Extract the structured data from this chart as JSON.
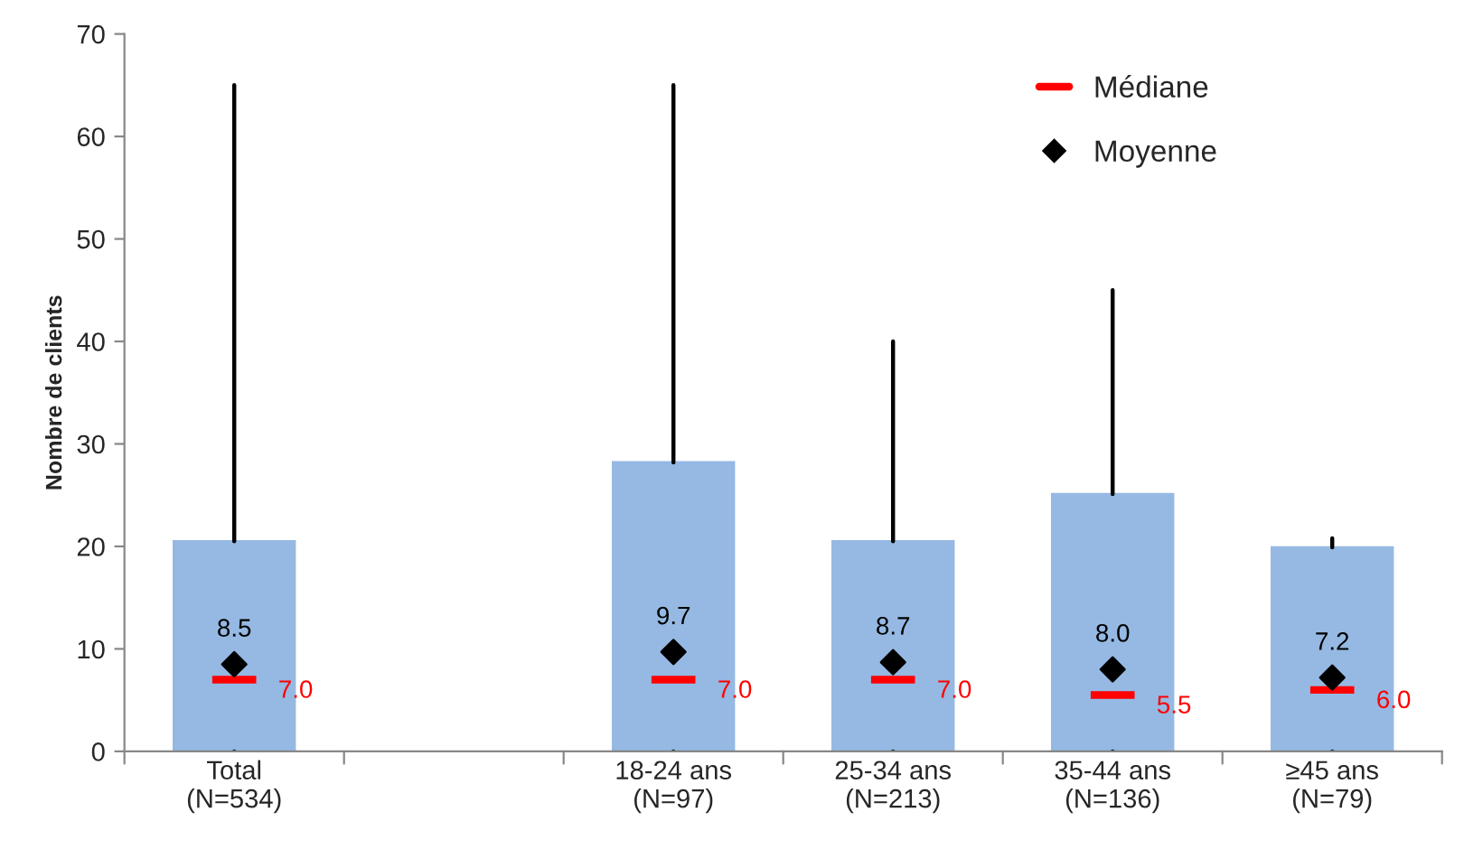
{
  "chart_data": {
    "type": "box",
    "ylabel": "Nombre de clients",
    "categories": [
      "Total\n(N=534)",
      null,
      "18-24 ans\n(N=97)",
      "25-34 ans\n(N=213)",
      "35-44 ans\n(N=136)",
      "≥45 ans\n(N=79)"
    ],
    "ylim": [
      0,
      70
    ],
    "yticks": [
      0,
      10,
      20,
      30,
      40,
      50,
      60,
      70
    ],
    "grid": false,
    "legend": "top right",
    "color": "#95b9e3",
    "boxes": [
      {
        "low": 0,
        "q1": 0,
        "median": 7.0,
        "q3": 20.5,
        "high": 65
      },
      null,
      {
        "low": 0,
        "q1": 0,
        "median": 7.0,
        "q3": 28.2,
        "high": 65
      },
      {
        "low": 0,
        "q1": 0,
        "median": 7.0,
        "q3": 20.5,
        "high": 40
      },
      {
        "low": 0,
        "q1": 0,
        "median": 5.5,
        "q3": 25.1,
        "high": 45
      },
      {
        "low": 0,
        "q1": 0,
        "median": 6.0,
        "q3": 19.9,
        "high": 20.8
      }
    ],
    "series": [
      {
        "name": "Moyenne",
        "type": "scatter",
        "color": "#000000",
        "marker": "diamond",
        "values": [
          8.5,
          null,
          9.7,
          8.7,
          8.0,
          7.2
        ],
        "value_labels": [
          "8.5",
          null,
          "9.7",
          "8.7",
          "8.0",
          "7.2"
        ]
      }
    ],
    "annotations": [
      "Médiane",
      {
        "text": "7.0",
        "x": "Total\n(N=534)",
        "y": 7.0
      },
      {
        "text": "7.0",
        "x": "18-24 ans\n(N=97)",
        "y": 7.0
      },
      {
        "text": "7.0",
        "x": "25-34 ans\n(N=213)",
        "y": 7.0
      },
      {
        "text": "5.5",
        "x": "35-44 ans\n(N=136)",
        "y": 5.5
      },
      {
        "text": "6.0",
        "x": "≥45 ans\n(N=79)",
        "y": 6.0
      }
    ]
  }
}
